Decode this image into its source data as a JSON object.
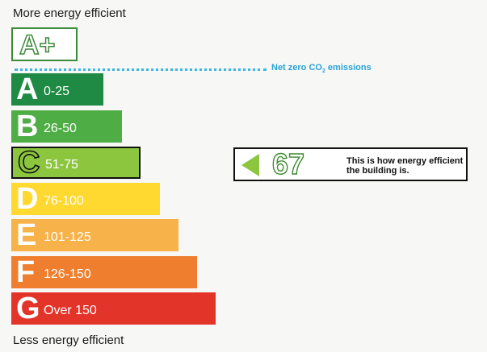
{
  "labels": {
    "top": "More energy efficient",
    "bottom": "Less energy efficient"
  },
  "aplus": {
    "text": "A+"
  },
  "net_zero": {
    "prefix": "Net zero CO",
    "subscript": "2",
    "suffix": " emissions"
  },
  "bands": [
    {
      "letter": "A",
      "range": "0-25",
      "color": "#1e8a43"
    },
    {
      "letter": "B",
      "range": "26-50",
      "color": "#4ead45"
    },
    {
      "letter": "C",
      "range": "51-75",
      "color": "#8cc63f"
    },
    {
      "letter": "D",
      "range": "76-100",
      "color": "#ffd92f"
    },
    {
      "letter": "E",
      "range": "101-125",
      "color": "#f7b24a"
    },
    {
      "letter": "F",
      "range": "126-150",
      "color": "#ef7f2e"
    },
    {
      "letter": "G",
      "range": "Over 150",
      "color": "#e3342a"
    }
  ],
  "current_band": "C",
  "indicator": {
    "score": "67",
    "caption": "This is how energy efficient the building is."
  }
}
